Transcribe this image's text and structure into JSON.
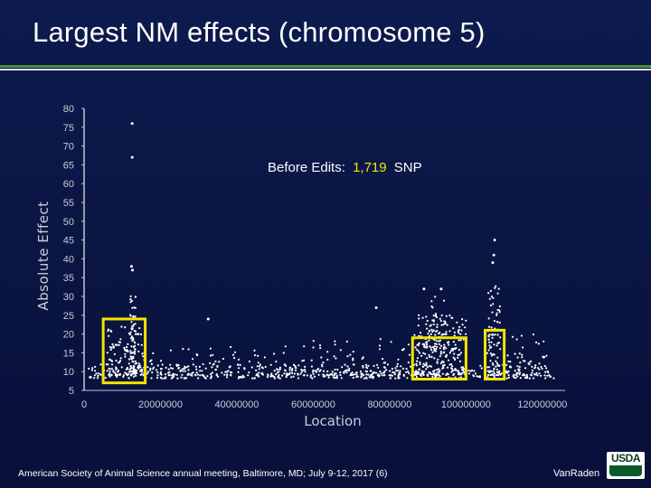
{
  "slide": {
    "title": "Largest NM effects (chromosome 5)",
    "footer": "American Society of Animal Science  annual meeting, Baltimore, MD; July  9-12, 2017   (6)",
    "author": "VanRaden",
    "logo_text": "USDA"
  },
  "colors": {
    "background": "#0b1648",
    "accent_green": "#4f8f3a",
    "points": "#ffffff",
    "highlight_box": "#f2e600",
    "annotation_number": "#f2e600"
  },
  "chart_data": {
    "type": "scatter",
    "xlabel": "Location",
    "ylabel": "Absolute Effect",
    "xlim": [
      0,
      125000000
    ],
    "ylim": [
      5,
      80
    ],
    "xticks": [
      "0",
      "20000000",
      "40000000",
      "60000000",
      "80000000",
      "100000000",
      "120000000"
    ],
    "yticks": [
      "5",
      "10",
      "15",
      "20",
      "25",
      "30",
      "35",
      "40",
      "45",
      "50",
      "55",
      "60",
      "65",
      "70",
      "75",
      "80"
    ],
    "annotation": {
      "prefix": "Before Edits:",
      "number": "1,719",
      "suffix": "SNP"
    },
    "highlight_regions": [
      {
        "x": [
          5000000,
          16000000
        ],
        "y": [
          7,
          24
        ]
      },
      {
        "x": [
          86000000,
          100000000
        ],
        "y": [
          8,
          19
        ]
      },
      {
        "x": [
          105000000,
          110000000
        ],
        "y": [
          8,
          21
        ]
      }
    ],
    "outlier_points": [
      {
        "x": 12600000,
        "y": 76
      },
      {
        "x": 12600000,
        "y": 67
      },
      {
        "x": 12400000,
        "y": 38
      },
      {
        "x": 12700000,
        "y": 37
      },
      {
        "x": 107500000,
        "y": 45
      },
      {
        "x": 107300000,
        "y": 41
      },
      {
        "x": 107000000,
        "y": 39
      },
      {
        "x": 93500000,
        "y": 32
      },
      {
        "x": 89000000,
        "y": 32
      },
      {
        "x": 76500000,
        "y": 27
      },
      {
        "x": 32500000,
        "y": 24
      }
    ]
  }
}
